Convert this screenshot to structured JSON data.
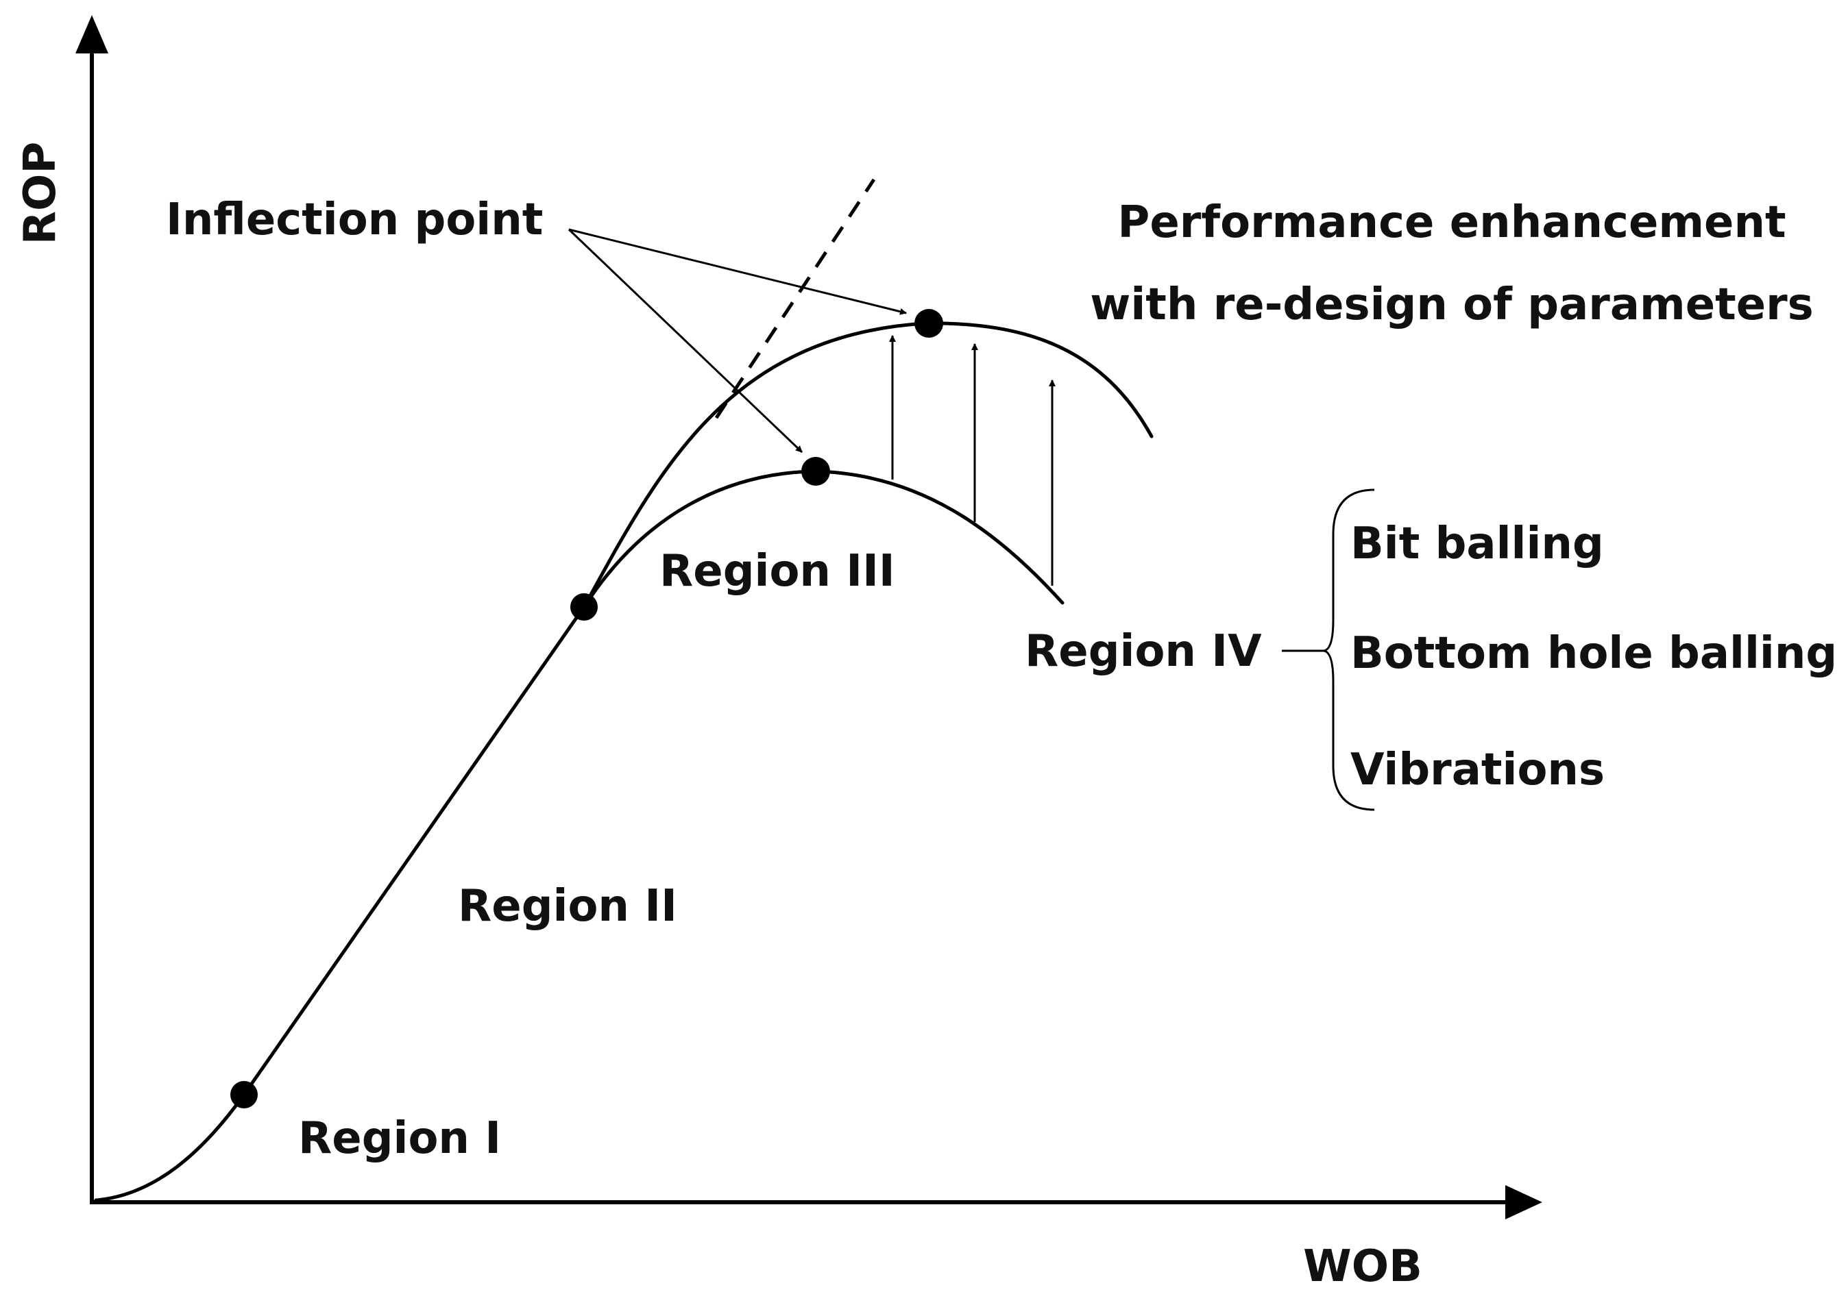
{
  "axes": {
    "x_label": "WOB",
    "y_label": "ROP"
  },
  "labels": {
    "inflection": "Inflection point",
    "performance_line1": "Performance enhancement",
    "performance_line2": "with re-design of parameters",
    "region1": "Region I",
    "region2": "Region II",
    "region3": "Region III",
    "region4": "Region IV"
  },
  "causes": [
    "Bit balling",
    "Bottom hole balling",
    "Vibrations"
  ],
  "colors": {
    "ink": "#000000",
    "background": "#ffffff"
  }
}
